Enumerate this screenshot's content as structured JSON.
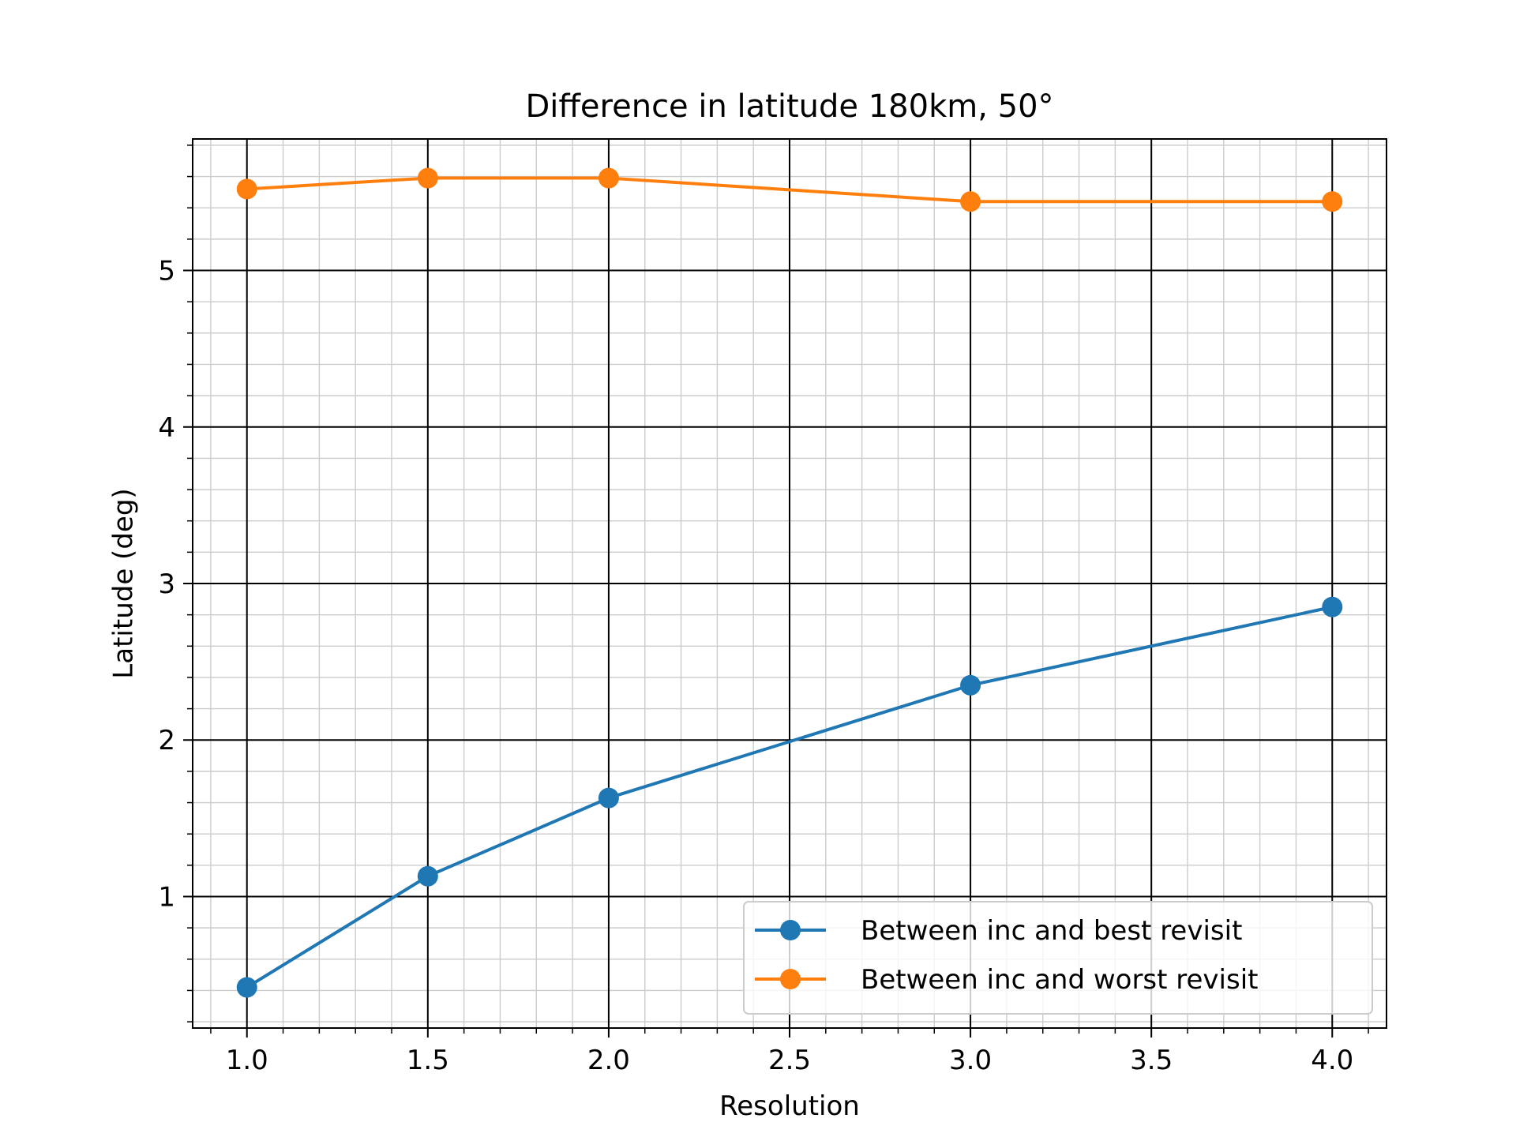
{
  "chart_data": {
    "type": "line",
    "title": "Difference in latitude 180km, 50°",
    "xlabel": "Resolution",
    "ylabel": "Latitude (deg)",
    "xlim": [
      0.85,
      4.15
    ],
    "ylim": [
      0.16,
      5.84
    ],
    "x_ticks": [
      1.0,
      1.5,
      2.0,
      2.5,
      3.0,
      3.5,
      4.0
    ],
    "x_tick_labels": [
      "1.0",
      "1.5",
      "2.0",
      "2.5",
      "3.0",
      "3.5",
      "4.0"
    ],
    "y_ticks": [
      1,
      2,
      3,
      4,
      5
    ],
    "y_tick_labels": [
      "1",
      "2",
      "3",
      "4",
      "5"
    ],
    "x_minor_step": 0.1,
    "y_minor_step": 0.2,
    "grid": "major and minor",
    "legend_position": "lower right",
    "x": [
      1.0,
      1.5,
      2.0,
      3.0,
      4.0
    ],
    "series": [
      {
        "name": "Between inc and best revisit",
        "color": "#1f77b4",
        "values": [
          0.42,
          1.13,
          1.63,
          2.35,
          2.85
        ]
      },
      {
        "name": "Between inc and worst revisit",
        "color": "#ff7f0e",
        "values": [
          5.52,
          5.59,
          5.59,
          5.44,
          5.44
        ]
      }
    ]
  }
}
